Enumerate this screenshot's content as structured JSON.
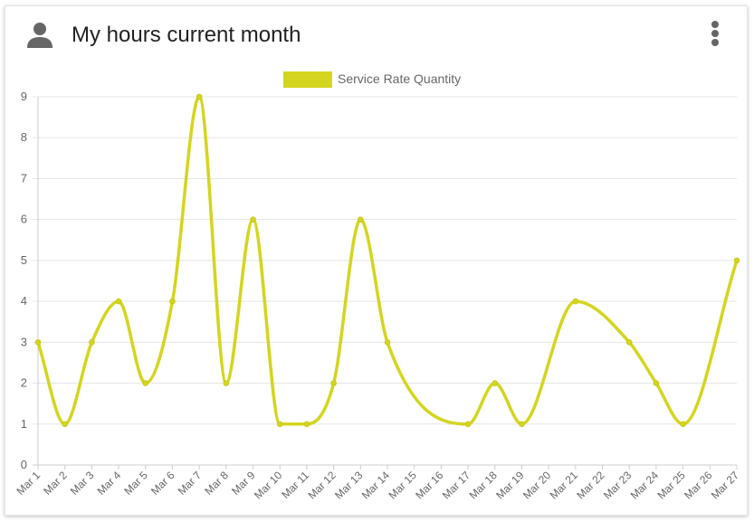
{
  "header": {
    "title": "My hours current month",
    "user_icon": "user-icon",
    "menu_icon": "more-vertical-icon"
  },
  "colors": {
    "series": "#d4d51f",
    "grid": "#e5e5e5",
    "axis_text": "#666666",
    "title_text": "#222222",
    "icon": "#666666"
  },
  "chart_data": {
    "type": "line",
    "title": "",
    "xlabel": "",
    "ylabel": "",
    "ylim": [
      0,
      9
    ],
    "yticks": [
      0,
      1,
      2,
      3,
      4,
      5,
      6,
      7,
      8,
      9
    ],
    "grid": true,
    "legend_position": "top-center",
    "categories": [
      "Mar 1",
      "Mar 2",
      "Mar 3",
      "Mar 4",
      "Mar 5",
      "Mar 6",
      "Mar 7",
      "Mar 8",
      "Mar 9",
      "Mar 10",
      "Mar 11",
      "Mar 12",
      "Mar 13",
      "Mar 14",
      "Mar 15",
      "Mar 16",
      "Mar 17",
      "Mar 18",
      "Mar 19",
      "Mar 20",
      "Mar 21",
      "Mar 22",
      "Mar 23",
      "Mar 24",
      "Mar 25",
      "Mar 26",
      "Mar 27"
    ],
    "series": [
      {
        "name": "Service Rate Quantity",
        "values": [
          3,
          1,
          3,
          4,
          2,
          4,
          9,
          2,
          6,
          1,
          1,
          2,
          6,
          3,
          null,
          null,
          1,
          2,
          1,
          null,
          4,
          null,
          3,
          2,
          1,
          null,
          5
        ]
      }
    ]
  }
}
